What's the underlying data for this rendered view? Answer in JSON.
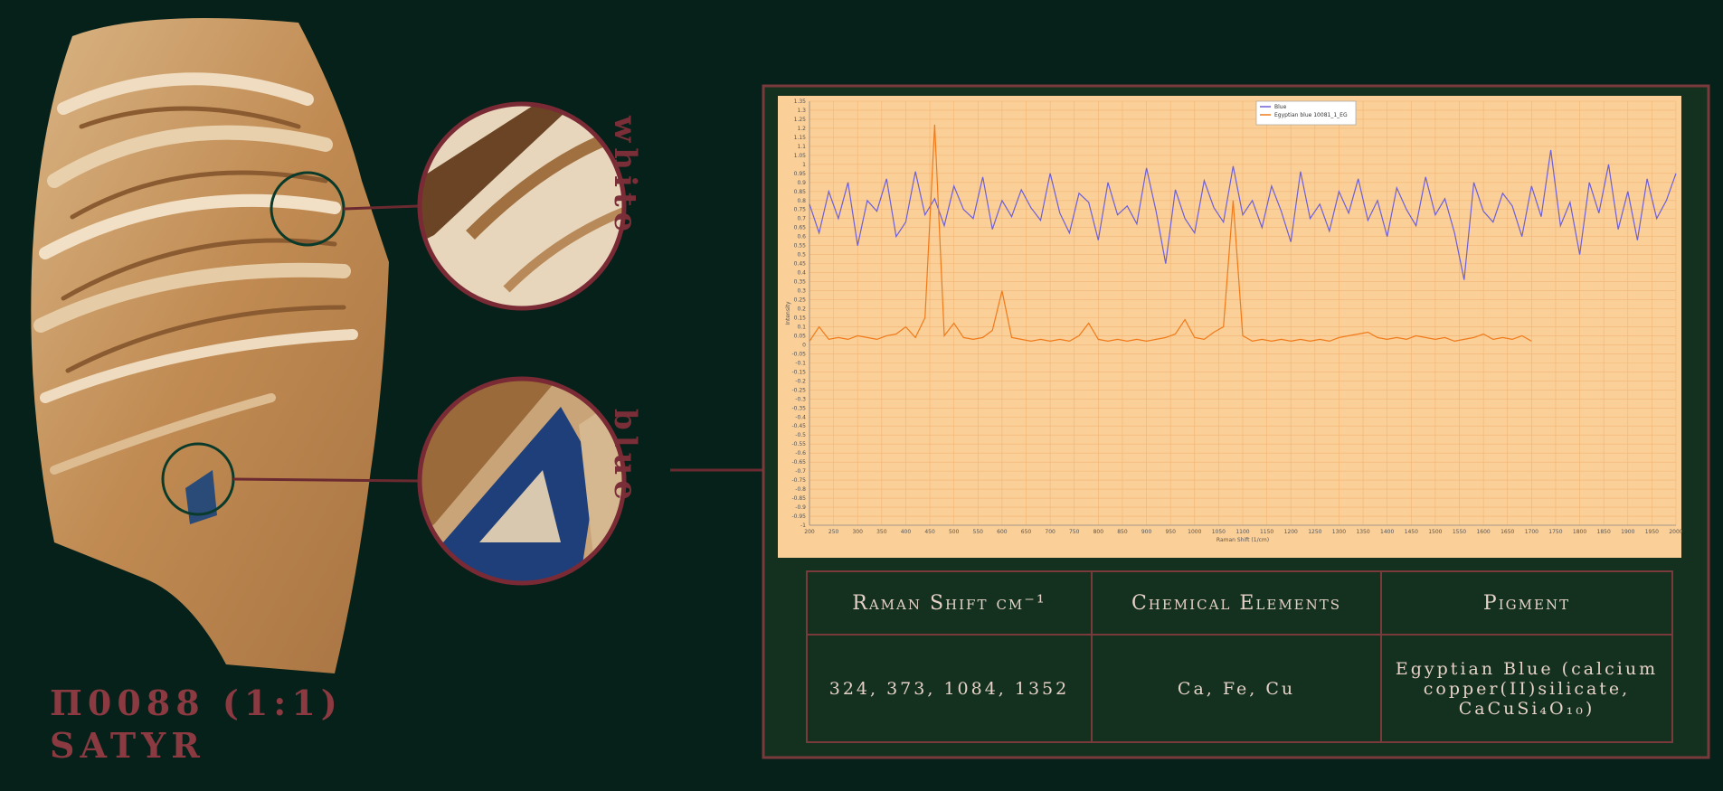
{
  "caption": {
    "title": "Π0088 (1:1)",
    "subtitle": "SATYR",
    "spots": [
      "white",
      "blue"
    ]
  },
  "chart_data": {
    "type": "line",
    "x_label": "Raman Shift (1/cm)",
    "y_label": "Intensity",
    "grid": true,
    "legend": "top",
    "x": [
      200,
      220,
      240,
      260,
      280,
      300,
      320,
      340,
      360,
      380,
      400,
      420,
      440,
      460,
      480,
      500,
      520,
      540,
      560,
      580,
      600,
      620,
      640,
      660,
      680,
      700,
      720,
      740,
      760,
      780,
      800,
      820,
      840,
      860,
      880,
      900,
      920,
      940,
      960,
      980,
      1000,
      1020,
      1040,
      1060,
      1080,
      1100,
      1120,
      1140,
      1160,
      1180,
      1200,
      1220,
      1240,
      1260,
      1280,
      1300,
      1320,
      1340,
      1360,
      1380,
      1400,
      1420,
      1440,
      1460,
      1480,
      1500,
      1520,
      1540,
      1560,
      1580,
      1600,
      1620,
      1640,
      1660,
      1680,
      1700,
      1720,
      1740,
      1760,
      1780,
      1800,
      1820,
      1840,
      1860,
      1880,
      1900,
      1920,
      1940,
      1960,
      1980,
      2000
    ],
    "series": [
      {
        "name": "Blue",
        "color": "#6d5fd8",
        "values": [
          0.78,
          0.62,
          0.85,
          0.7,
          0.9,
          0.55,
          0.8,
          0.74,
          0.92,
          0.6,
          0.68,
          0.96,
          0.72,
          0.81,
          0.66,
          0.88,
          0.75,
          0.7,
          0.93,
          0.64,
          0.8,
          0.71,
          0.86,
          0.76,
          0.69,
          0.95,
          0.73,
          0.62,
          0.84,
          0.79,
          0.58,
          0.9,
          0.72,
          0.77,
          0.67,
          0.98,
          0.74,
          0.45,
          0.86,
          0.7,
          0.62,
          0.91,
          0.76,
          0.68,
          0.99,
          0.72,
          0.8,
          0.65,
          0.88,
          0.74,
          0.57,
          0.96,
          0.7,
          0.78,
          0.63,
          0.85,
          0.73,
          0.92,
          0.69,
          0.8,
          0.6,
          0.87,
          0.75,
          0.66,
          0.93,
          0.72,
          0.81,
          0.62,
          0.36,
          0.9,
          0.74,
          0.68,
          0.84,
          0.77,
          0.6,
          0.88,
          0.71,
          1.08,
          0.66,
          0.79,
          0.5,
          0.9,
          0.73,
          1.0,
          0.64,
          0.85,
          0.58,
          0.92,
          0.7,
          0.8,
          0.95
        ]
      },
      {
        "name": "Egyptian blue 10081_1_EG",
        "color": "#f07a1a",
        "values": [
          0.02,
          0.1,
          0.03,
          0.04,
          0.03,
          0.05,
          0.04,
          0.03,
          0.05,
          0.06,
          0.1,
          0.04,
          0.15,
          1.22,
          0.05,
          0.12,
          0.04,
          0.03,
          0.04,
          0.08,
          0.3,
          0.04,
          0.03,
          0.02,
          0.03,
          0.02,
          0.03,
          0.02,
          0.05,
          0.12,
          0.03,
          0.02,
          0.03,
          0.02,
          0.03,
          0.02,
          0.03,
          0.04,
          0.06,
          0.14,
          0.04,
          0.03,
          0.07,
          0.1,
          0.8,
          0.05,
          0.02,
          0.03,
          0.02,
          0.03,
          0.02,
          0.03,
          0.02,
          0.03,
          0.02,
          0.04,
          0.05,
          0.06,
          0.07,
          0.04,
          0.03,
          0.04,
          0.03,
          0.05,
          0.04,
          0.03,
          0.04,
          0.02,
          0.03,
          0.04,
          0.06,
          0.03,
          0.04,
          0.03,
          0.05,
          0.02,
          null,
          null,
          null,
          null,
          null,
          null,
          null,
          null,
          null,
          null,
          null,
          null,
          null,
          null,
          null
        ]
      }
    ],
    "xlim": [
      200,
      2000
    ],
    "xticks": [
      200,
      250,
      300,
      350,
      400,
      450,
      500,
      550,
      600,
      650,
      700,
      750,
      800,
      850,
      900,
      950,
      1000,
      1050,
      1100,
      1150,
      1200,
      1250,
      1300,
      1350,
      1400,
      1450,
      1500,
      1550,
      1600,
      1650,
      1700,
      1750,
      1800,
      1850,
      1900,
      1950,
      2000
    ],
    "ylim": [
      -1,
      1.35
    ],
    "yticks": [
      -1,
      -0.95,
      -0.9,
      -0.85,
      -0.8,
      -0.75,
      -0.7,
      -0.65,
      -0.6,
      -0.55,
      -0.5,
      -0.45,
      -0.4,
      -0.35,
      -0.3,
      -0.25,
      -0.2,
      -0.15,
      -0.1,
      -0.05,
      0,
      0.05,
      0.1,
      0.15,
      0.2,
      0.25,
      0.3,
      0.35,
      0.4,
      0.45,
      0.5,
      0.55,
      0.6,
      0.65,
      0.7,
      0.75,
      0.8,
      0.85,
      0.9,
      0.95,
      1,
      1.05,
      1.1,
      1.15,
      1.2,
      1.25,
      1.3,
      1.35
    ]
  },
  "table": {
    "headers": [
      "Raman Shift cm⁻¹",
      "Chemical Elements",
      "Pigment"
    ],
    "rows": [
      [
        "324, 373, 1084, 1352",
        "Ca, Fe, Cu",
        "Egyptian Blue (calcium copper(II)silicate, CaCuSi₄O₁₀)"
      ]
    ]
  }
}
